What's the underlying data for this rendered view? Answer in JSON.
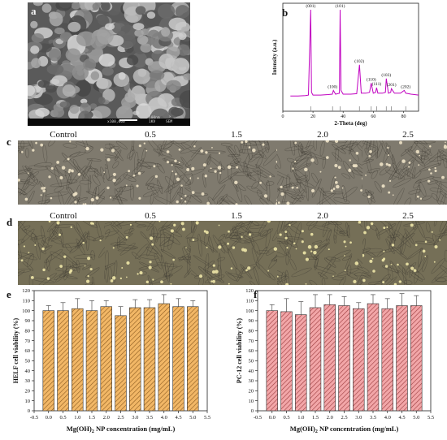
{
  "panel_labels": {
    "a": "a",
    "b": "b",
    "c": "c",
    "d": "d",
    "e": "e",
    "f": "f"
  },
  "panel_a": {
    "scalebar_text": "100nm",
    "info_texts": [
      "x100,000",
      "1KV",
      "SEM"
    ]
  },
  "micrograph_labels": [
    "Control",
    "0.5",
    "1.5",
    "2.0",
    "2.5"
  ],
  "chart_data": [
    {
      "type": "line",
      "panel": "b",
      "xlabel": "2-Theta (deg)",
      "ylabel": "Intensity (a.u.)",
      "xlim": [
        0,
        90
      ],
      "xticks": [
        0,
        20,
        40,
        60,
        80
      ],
      "x": [
        5,
        10,
        15,
        17,
        18.5,
        19,
        20,
        25,
        30,
        32.8,
        33.5,
        35,
        37.5,
        38,
        38.6,
        40,
        45,
        49,
        50.8,
        52,
        55,
        57.5,
        58.6,
        60,
        61.5,
        62.2,
        63,
        66,
        68,
        68.6,
        70,
        71.5,
        72,
        74,
        78,
        80.5,
        81.5,
        85,
        90
      ],
      "y": [
        6,
        6,
        6.5,
        7,
        100,
        10,
        7,
        7,
        7.5,
        8,
        12,
        8,
        9,
        100,
        12,
        8,
        8,
        8.5,
        40,
        9,
        9,
        10,
        20,
        9,
        10,
        15,
        9,
        9,
        10,
        25,
        9,
        10,
        14,
        9,
        9,
        12,
        9,
        8,
        7
      ],
      "peak_labels": [
        {
          "label": "(001)",
          "x": 18.5,
          "y": 100
        },
        {
          "label": "(101)",
          "x": 38.0,
          "y": 100
        },
        {
          "label": "(100)",
          "x": 33.0,
          "y": 12
        },
        {
          "label": "(102)",
          "x": 50.8,
          "y": 40
        },
        {
          "label": "(110)",
          "x": 58.6,
          "y": 20
        },
        {
          "label": "(111)",
          "x": 62.2,
          "y": 15
        },
        {
          "label": "(103)",
          "x": 68.6,
          "y": 25
        },
        {
          "label": "(201)",
          "x": 72.0,
          "y": 14
        },
        {
          "label": "(202)",
          "x": 81.5,
          "y": 12
        }
      ],
      "reference_lines": [
        18.5,
        33.0,
        38.0,
        50.8,
        58.6,
        62.2,
        68.6,
        72.0,
        81.5
      ],
      "series_color": "#c000c0"
    },
    {
      "type": "bar",
      "panel": "e",
      "x": [
        0.0,
        0.5,
        1.0,
        1.5,
        2.0,
        2.5,
        3.0,
        3.5,
        4.0,
        4.5,
        5.0
      ],
      "values": [
        100,
        100,
        102,
        100,
        104,
        95,
        103,
        103,
        107,
        104,
        104
      ],
      "errors": [
        5,
        8,
        10,
        10,
        6,
        9,
        8,
        8,
        9,
        8,
        6
      ],
      "xlabel": "Mg(OH)2 NP concentration (mg/mL)",
      "ylabel": "HELF cell viability (%)",
      "xlim": [
        -0.5,
        5.5
      ],
      "ylim": [
        0,
        120
      ],
      "xticks": [
        -0.5,
        0.0,
        0.5,
        1.0,
        1.5,
        2.0,
        2.5,
        3.0,
        3.5,
        4.0,
        4.5,
        5.0,
        5.5
      ],
      "yticks": [
        0,
        10,
        20,
        30,
        40,
        50,
        60,
        70,
        80,
        90,
        100,
        110,
        120
      ],
      "bar_color": "#f2b766",
      "hatch_color": "#8a5a1f"
    },
    {
      "type": "bar",
      "panel": "f",
      "x": [
        0.0,
        0.5,
        1.0,
        1.5,
        2.0,
        2.5,
        3.0,
        3.5,
        4.0,
        4.5,
        5.0
      ],
      "values": [
        100,
        99,
        96,
        103,
        106,
        105,
        102,
        107,
        102,
        105,
        105
      ],
      "errors": [
        6,
        13,
        13,
        13,
        10,
        9,
        6,
        9,
        10,
        12,
        10
      ],
      "xlabel": "Mg(OH)2 NP concentration (mg/mL)",
      "ylabel": "PC-12 cell viability (%)",
      "xlim": [
        -0.5,
        5.5
      ],
      "ylim": [
        0,
        120
      ],
      "xticks": [
        -0.5,
        0.0,
        0.5,
        1.0,
        1.5,
        2.0,
        2.5,
        3.0,
        3.5,
        4.0,
        4.5,
        5.0,
        5.5
      ],
      "yticks": [
        0,
        10,
        20,
        30,
        40,
        50,
        60,
        70,
        80,
        90,
        100,
        110,
        120
      ],
      "bar_color": "#f2a6a8",
      "hatch_color": "#9a3a3c"
    }
  ]
}
